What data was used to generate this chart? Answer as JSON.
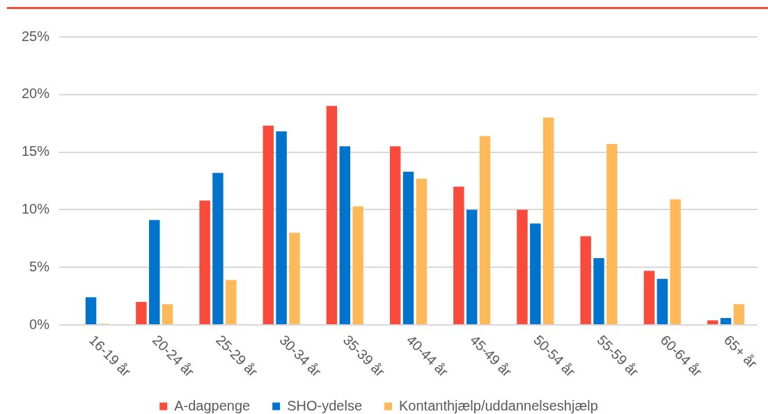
{
  "chart_data": {
    "type": "bar",
    "categories": [
      "16-19 år",
      "20-24 år",
      "25-29 år",
      "30-34 år",
      "35-39 år",
      "40-44 år",
      "45-49 år",
      "50-54 år",
      "55-59 år",
      "60-64 år",
      "65+ år"
    ],
    "series": [
      {
        "name": "A-dagpenge",
        "color": "#f84b3c",
        "values": [
          0,
          2.0,
          10.8,
          17.3,
          19.0,
          15.5,
          12.0,
          10.0,
          7.7,
          4.7,
          0.4
        ]
      },
      {
        "name": "SHO-ydelse",
        "color": "#0074cc",
        "values": [
          2.4,
          9.1,
          13.2,
          16.8,
          15.5,
          13.3,
          10.0,
          8.8,
          5.8,
          4.0,
          0.6
        ]
      },
      {
        "name": "Kontanthjælp/uddannelseshjælp",
        "color": "#ffb959",
        "values": [
          0.1,
          1.8,
          3.9,
          8.0,
          10.3,
          12.7,
          16.4,
          18.0,
          15.7,
          10.9,
          1.8
        ]
      }
    ],
    "ylim": [
      0,
      25
    ],
    "yticks": [
      {
        "value": 0,
        "label": "0%"
      },
      {
        "value": 5,
        "label": "5%"
      },
      {
        "value": 10,
        "label": "10%"
      },
      {
        "value": 15,
        "label": "15%"
      },
      {
        "value": 20,
        "label": "20%"
      },
      {
        "value": 25,
        "label": "25%"
      }
    ],
    "grid": "y",
    "legend": "bottom"
  }
}
